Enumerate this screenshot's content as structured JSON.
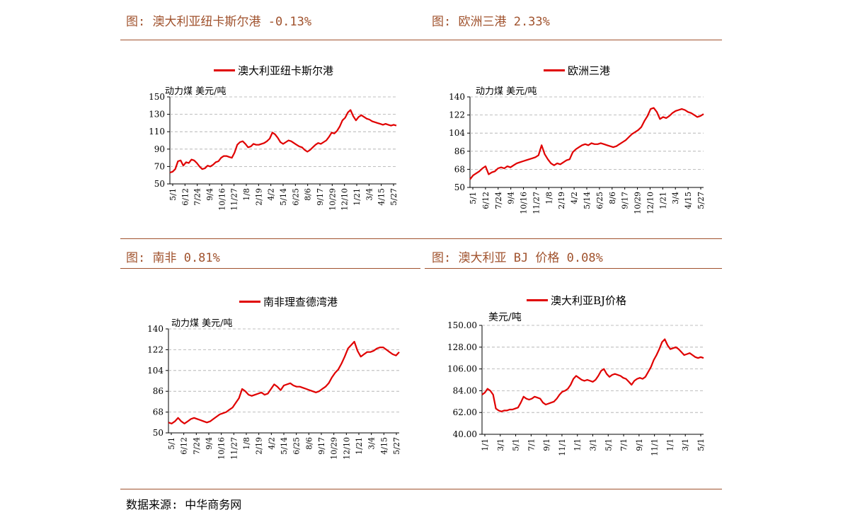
{
  "captions": {
    "c1": "图: 澳大利亚纽卡斯尔港 -0.13%",
    "c2": "图: 欧洲三港 2.33%",
    "c3": "图: 南非 0.81%",
    "c4": "图: 澳大利亚 BJ 价格 0.08%"
  },
  "footer": "数据来源: 中华商务网",
  "colors": {
    "caption": "#a0522d",
    "series": "#e00000",
    "grid": "#aaaaaa"
  },
  "chart_data": [
    {
      "type": "line",
      "title": "",
      "ylabel": "动力煤 美元/吨",
      "ylim": [
        50,
        150
      ],
      "yticks": [
        50,
        70,
        90,
        110,
        130,
        150
      ],
      "ytick_labels": [
        "50",
        "70",
        "90",
        "110",
        "130",
        "150"
      ],
      "xtick_labels": [
        "5/1",
        "6/12",
        "7/24",
        "9/4",
        "10/16",
        "11/27",
        "1/8",
        "2/19",
        "4/2",
        "5/14",
        "6/25",
        "8/6",
        "9/17",
        "10/29",
        "12/10",
        "1/21",
        "3/4",
        "4/15",
        "5/27"
      ],
      "grid": true,
      "series": [
        {
          "name": "澳大利亚纽卡斯尔港",
          "values": [
            63,
            64,
            67,
            76,
            77,
            71,
            75,
            74,
            78,
            77,
            74,
            70,
            67,
            68,
            71,
            70,
            72,
            75,
            76,
            80,
            82,
            82,
            81,
            80,
            86,
            95,
            98,
            99,
            96,
            92,
            93,
            96,
            95,
            95,
            96,
            97,
            99,
            102,
            109,
            107,
            103,
            98,
            96,
            98,
            100,
            99,
            97,
            95,
            93,
            92,
            89,
            87,
            89,
            92,
            95,
            97,
            96,
            98,
            100,
            104,
            109,
            108,
            111,
            116,
            123,
            126,
            132,
            135,
            128,
            123,
            127,
            129,
            127,
            125,
            124,
            122,
            121,
            120,
            119,
            118,
            119,
            118,
            117,
            118,
            117
          ]
        }
      ],
      "legend": "top-center"
    },
    {
      "type": "line",
      "title": "",
      "ylabel": "动力煤 美元/吨",
      "ylim": [
        50,
        140
      ],
      "yticks": [
        50,
        68,
        86,
        104,
        122,
        140
      ],
      "ytick_labels": [
        "50",
        "68",
        "86",
        "104",
        "122",
        "140"
      ],
      "xtick_labels": [
        "5/1",
        "6/12",
        "7/24",
        "9/4",
        "10/16",
        "11/27",
        "1/8",
        "2/19",
        "4/2",
        "5/14",
        "6/25",
        "8/6",
        "9/17",
        "10/29",
        "12/10",
        "1/21",
        "3/4",
        "4/15",
        "5/27"
      ],
      "grid": true,
      "series": [
        {
          "name": "欧洲三港",
          "values": [
            58,
            62,
            64,
            66,
            69,
            71,
            63,
            65,
            66,
            69,
            70,
            69,
            71,
            70,
            72,
            74,
            75,
            76,
            77,
            78,
            79,
            80,
            82,
            92,
            83,
            78,
            74,
            72,
            74,
            73,
            75,
            77,
            78,
            85,
            88,
            90,
            92,
            93,
            92,
            94,
            93,
            93,
            94,
            93,
            92,
            91,
            90,
            91,
            93,
            95,
            97,
            100,
            103,
            105,
            107,
            110,
            116,
            121,
            128,
            129,
            125,
            118,
            120,
            119,
            121,
            124,
            126,
            127,
            128,
            127,
            125,
            124,
            122,
            120,
            121,
            123
          ]
        }
      ],
      "legend": "top-center"
    },
    {
      "type": "line",
      "title": "",
      "ylabel": "动力煤 美元/吨",
      "ylim": [
        50,
        140
      ],
      "yticks": [
        50,
        68,
        86,
        104,
        122,
        140
      ],
      "ytick_labels": [
        "50",
        "68",
        "86",
        "104",
        "122",
        "140"
      ],
      "xtick_labels": [
        "5/1",
        "6/12",
        "7/24",
        "9/4",
        "10/16",
        "11/27",
        "1/8",
        "2/19",
        "4/2",
        "5/14",
        "6/25",
        "8/6",
        "9/17",
        "10/29",
        "12/10",
        "1/21",
        "3/4",
        "4/15",
        "5/27"
      ],
      "grid": true,
      "series": [
        {
          "name": "南非理查德湾港",
          "values": [
            59,
            58,
            60,
            63,
            60,
            58,
            60,
            62,
            63,
            62,
            61,
            60,
            59,
            60,
            62,
            64,
            66,
            67,
            68,
            70,
            72,
            76,
            80,
            88,
            86,
            83,
            82,
            83,
            84,
            85,
            83,
            84,
            88,
            92,
            90,
            87,
            91,
            92,
            93,
            91,
            90,
            90,
            89,
            88,
            87,
            86,
            85,
            86,
            88,
            90,
            93,
            98,
            102,
            105,
            110,
            116,
            123,
            126,
            129,
            121,
            116,
            118,
            120,
            120,
            121,
            123,
            124,
            124,
            122,
            120,
            118,
            117,
            120
          ]
        }
      ],
      "legend": "top-center"
    },
    {
      "type": "line",
      "title": "",
      "ylabel": "美元/吨",
      "ylim": [
        40,
        150
      ],
      "yticks": [
        40,
        62,
        84,
        106,
        128,
        150
      ],
      "ytick_labels": [
        "40.00",
        "62.00",
        "84.00",
        "106.00",
        "128.00",
        "150.00"
      ],
      "xtick_labels": [
        "1/1",
        "3/1",
        "5/1",
        "7/1",
        "9/1",
        "11/1",
        "1/1",
        "3/1",
        "5/1",
        "7/1",
        "9/1",
        "11/1",
        "1/1",
        "3/1",
        "5/1"
      ],
      "grid": true,
      "series": [
        {
          "name": "澳大利亚BJ价格",
          "values": [
            80,
            82,
            86,
            84,
            80,
            66,
            64,
            63,
            64,
            64,
            65,
            65,
            66,
            67,
            72,
            78,
            76,
            75,
            76,
            78,
            77,
            76,
            72,
            70,
            71,
            72,
            73,
            76,
            80,
            83,
            84,
            86,
            90,
            96,
            99,
            97,
            95,
            94,
            95,
            94,
            93,
            95,
            99,
            104,
            106,
            101,
            98,
            100,
            101,
            100,
            99,
            97,
            96,
            93,
            90,
            94,
            96,
            97,
            96,
            98,
            103,
            108,
            115,
            120,
            126,
            133,
            136,
            130,
            126,
            127,
            128,
            126,
            123,
            120,
            121,
            122,
            120,
            118,
            117,
            118,
            117
          ]
        }
      ],
      "legend": "top-center"
    }
  ]
}
